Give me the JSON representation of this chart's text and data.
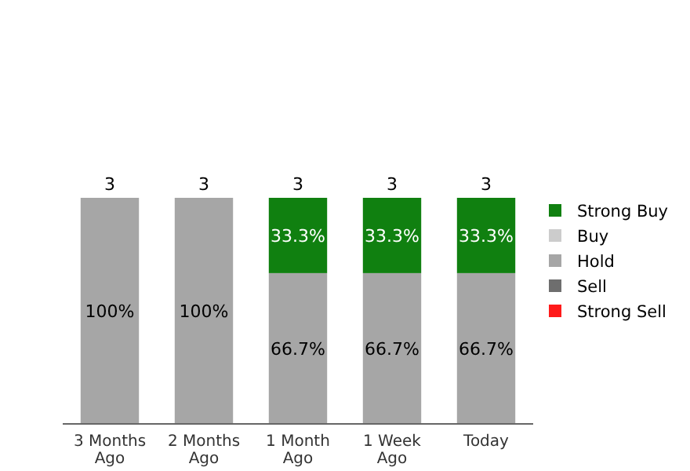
{
  "chart_data": {
    "type": "bar",
    "stacked": true,
    "categories": [
      "3 Months Ago",
      "2 Months Ago",
      "1 Month Ago",
      "1 Week Ago",
      "Today"
    ],
    "series": [
      {
        "name": "Strong Sell",
        "color": "#ff1a1a",
        "values": [
          null,
          null,
          null,
          null,
          null
        ]
      },
      {
        "name": "Sell",
        "color": "#6e6e6e",
        "values": [
          null,
          null,
          null,
          null,
          null
        ]
      },
      {
        "name": "Hold",
        "color": "#a6a6a6",
        "values": [
          100,
          100,
          66.7,
          66.7,
          66.7
        ],
        "value_labels": [
          "100%",
          "100%",
          "66.7%",
          "66.7%",
          "66.7%"
        ]
      },
      {
        "name": "Buy",
        "color": "#cccccc",
        "values": [
          null,
          null,
          null,
          null,
          null
        ]
      },
      {
        "name": "Strong Buy",
        "color": "#108010",
        "values": [
          null,
          null,
          33.3,
          33.3,
          33.3
        ],
        "value_labels": [
          null,
          null,
          "33.3%",
          "33.3%",
          "33.3%"
        ]
      }
    ],
    "annotations": [
      {
        "text": "3",
        "x": "3 Months Ago",
        "y": 100
      },
      {
        "text": "3",
        "x": "2 Months Ago",
        "y": 100
      },
      {
        "text": "3",
        "x": "1 Month Ago",
        "y": 100
      },
      {
        "text": "3",
        "x": "1 Week Ago",
        "y": 100
      },
      {
        "text": "3",
        "x": "Today",
        "y": 100
      }
    ],
    "legend": "right"
  }
}
